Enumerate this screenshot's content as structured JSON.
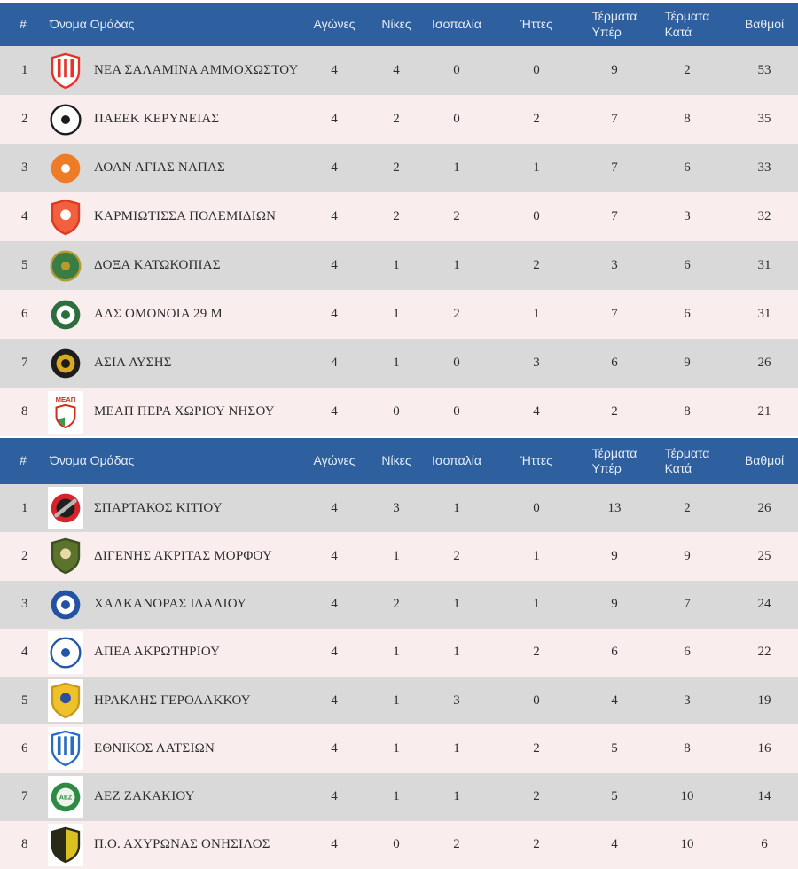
{
  "colors": {
    "header_bg": "#2e5f9e",
    "header_text": "#e7edf6",
    "row_gray": "#d9d9d9",
    "row_pink": "#f9eded",
    "cell_text": "#2e2e2e"
  },
  "columns": {
    "rank": "#",
    "team": "Όνομα Ομάδας",
    "stats": [
      "Αγώνες",
      "Νίκες",
      "Ισοπαλία",
      "Ήττες",
      "Τέρματα\nΥπέρ",
      "Τέρματα\nΚατά",
      "Βαθμοί"
    ]
  },
  "tables": [
    {
      "name": "standings-table-1",
      "rows": [
        {
          "rank": 1,
          "team": "ΝΕΑ ΣΑΛΑΜΙΝΑ ΑΜΜΟΧΩΣΤΟΥ",
          "stats": [
            4,
            4,
            0,
            0,
            9,
            2,
            53
          ],
          "logo": {
            "icon": "nea-salamina-crest",
            "shape": "shield",
            "c1": "#ffffff",
            "ring": "#e63329",
            "stripes": "#e63329"
          }
        },
        {
          "rank": 2,
          "team": "ΠΑΕΕΚ ΚΕΡΥΝΕΙΑΣ",
          "stats": [
            4,
            2,
            0,
            2,
            7,
            8,
            35
          ],
          "logo": {
            "icon": "paeek-crest",
            "shape": "circle",
            "c1": "#fdfdfd",
            "ring": "#1c1c1c",
            "c3": "#1c1c1c"
          }
        },
        {
          "rank": 3,
          "team": "ΑΟΑΝ ΑΓΙΑΣ ΝΑΠΑΣ",
          "stats": [
            4,
            2,
            1,
            1,
            7,
            6,
            33
          ],
          "logo": {
            "icon": "aoan-crest",
            "shape": "circle",
            "c1": "#ee7c27",
            "c3": "#ffffff"
          }
        },
        {
          "rank": 4,
          "team": "ΚΑΡΜΙΩΤΙΣΣΑ ΠΟΛΕΜΙΔΙΩΝ",
          "stats": [
            4,
            2,
            2,
            0,
            7,
            3,
            32
          ],
          "logo": {
            "icon": "karmiotissa-crest",
            "shape": "shield",
            "c1": "#f2603f",
            "ring": "#dd3a20",
            "c3": "#ffffff"
          }
        },
        {
          "rank": 5,
          "team": "ΔΟΞΑ ΚΑΤΩΚΟΠΙΑΣ",
          "stats": [
            4,
            1,
            1,
            2,
            3,
            6,
            31
          ],
          "logo": {
            "icon": "doxa-crest",
            "shape": "circle",
            "c1": "#3a7d44",
            "ring": "#b99b2c",
            "c3": "#b99b2c"
          }
        },
        {
          "rank": 6,
          "team": "ΑΛΣ ΟΜΟΝΟΙΑ 29 Μ",
          "stats": [
            4,
            1,
            2,
            1,
            7,
            6,
            31
          ],
          "logo": {
            "icon": "omonoia-29m-crest",
            "shape": "circle",
            "c1": "#2c6e3e",
            "c2": "#ffffff",
            "c3": "#2c6e3e"
          }
        },
        {
          "rank": 7,
          "team": "ΑΣΙΛ ΛΥΣΗΣ",
          "stats": [
            4,
            1,
            0,
            3,
            6,
            9,
            26
          ],
          "logo": {
            "icon": "asil-crest",
            "shape": "circle",
            "c1": "#1d1d1d",
            "c2": "#d9a91f",
            "c3": "#1d1d1d"
          }
        },
        {
          "rank": 8,
          "team": "ΜΕΑΠ ΠΕΡΑ ΧΩΡΙΟΥ ΝΗΣΟΥ",
          "stats": [
            4,
            0,
            0,
            4,
            2,
            8,
            21
          ],
          "logo": {
            "icon": "meap-crest",
            "shape": "crest",
            "c1": "#d42b1e",
            "c3": "#3a9a4a",
            "label": "ΜΕΑΠ",
            "box": true
          }
        }
      ]
    },
    {
      "name": "standings-table-2",
      "rows": [
        {
          "rank": 1,
          "team": "ΣΠΑΡΤΑΚΟΣ ΚΙΤΙΟΥ",
          "stats": [
            4,
            3,
            1,
            0,
            13,
            2,
            26
          ],
          "logo": {
            "icon": "spartakos-crest",
            "shape": "circle",
            "c1": "#d6242b",
            "c2": "#1f1f1f",
            "bar": "#b7b7b7",
            "box": true
          }
        },
        {
          "rank": 2,
          "team": "ΔΙΓΕΝΗΣ ΑΚΡΙΤΑΣ ΜΟΡΦΟΥ",
          "stats": [
            4,
            1,
            2,
            1,
            9,
            9,
            25
          ],
          "logo": {
            "icon": "digenis-crest",
            "shape": "shield",
            "c1": "#5c732c",
            "ring": "#3f5020",
            "c3": "#e8d9a8"
          }
        },
        {
          "rank": 3,
          "team": "ΧΑΛΚΑΝΟΡΑΣ ΙΔΑΛΙΟΥ",
          "stats": [
            4,
            2,
            1,
            1,
            9,
            7,
            24
          ],
          "logo": {
            "icon": "chalkanoras-crest",
            "shape": "circle",
            "c1": "#2152a3",
            "c2": "#ffffff",
            "c3": "#2152a3"
          }
        },
        {
          "rank": 4,
          "team": "ΑΠΕΑ ΑΚΡΩΤΗΡΙΟΥ",
          "stats": [
            4,
            1,
            1,
            2,
            6,
            6,
            22
          ],
          "logo": {
            "icon": "apea-crest",
            "shape": "circle",
            "c1": "#ffffff",
            "ring": "#2456a8",
            "c3": "#2456a8",
            "box": true
          }
        },
        {
          "rank": 5,
          "team": "ΗΡΑΚΛΗΣ ΓΕΡΟΛΑΚΚΟΥ",
          "stats": [
            4,
            1,
            3,
            0,
            4,
            3,
            19
          ],
          "logo": {
            "icon": "iraklis-crest",
            "shape": "shield",
            "c1": "#efc22c",
            "ring": "#c79a1e",
            "c3": "#2b4ea0",
            "box": true
          }
        },
        {
          "rank": 6,
          "team": "ΕΘΝΙΚΟΣ ΛΑΤΣΙΩΝ",
          "stats": [
            4,
            1,
            1,
            2,
            5,
            8,
            16
          ],
          "logo": {
            "icon": "ethnikos-crest",
            "shape": "shield",
            "c1": "#ffffff",
            "ring": "#2a6cc4",
            "stripes": "#2a6cc4",
            "box": true
          }
        },
        {
          "rank": 7,
          "team": "ΑΕΖ ΖΑΚΑΚΙΟΥ",
          "stats": [
            4,
            1,
            1,
            2,
            5,
            10,
            14
          ],
          "logo": {
            "icon": "aez-crest",
            "shape": "circle",
            "c1": "#2e8b44",
            "c2": "#eef4ec",
            "label": "ΑΕΖ",
            "labelColor": "#2e8b44",
            "box": true
          }
        },
        {
          "rank": 8,
          "team": "Π.Ο. ΑΧΥΡΩΝΑΣ ΟΝΗΣΙΛΟΣ",
          "stats": [
            4,
            0,
            2,
            2,
            4,
            10,
            6
          ],
          "logo": {
            "icon": "achyronas-crest",
            "shape": "shield",
            "c1": "#d9c21f",
            "ring": "#2a2a18",
            "split": "#2a2a18",
            "box": true
          }
        }
      ]
    }
  ]
}
